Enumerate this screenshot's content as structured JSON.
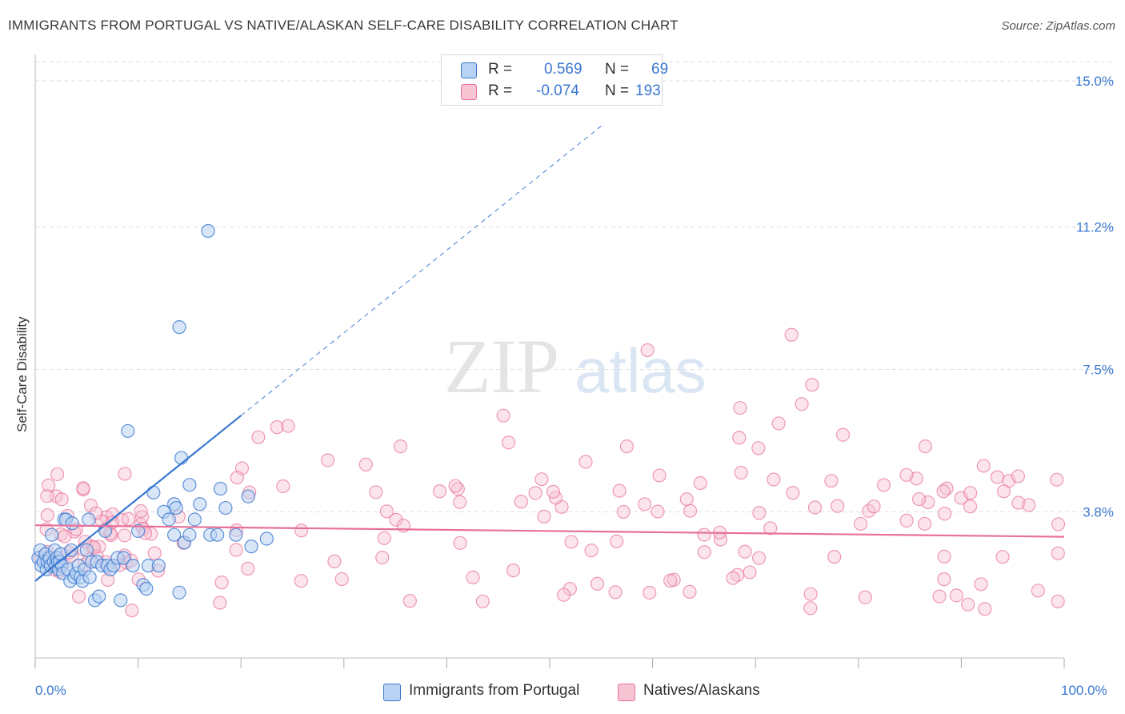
{
  "title": "IMMIGRANTS FROM PORTUGAL VS NATIVE/ALASKAN SELF-CARE DISABILITY CORRELATION CHART",
  "source": "Source: ZipAtlas.com",
  "watermark": {
    "zip": "ZIP",
    "atlas": "atlas"
  },
  "legend": {
    "r_label": "R =",
    "n_label": "N =",
    "rows": [
      {
        "r": "0.569",
        "n": "69"
      },
      {
        "r": "-0.074",
        "n": "193"
      }
    ]
  },
  "bottom_legend": [
    "Immigrants from Portugal",
    "Natives/Alaskans"
  ],
  "colors": {
    "blue": "#3a78d0",
    "blue_fill": "#b8d2f3",
    "pink": "#e8709a",
    "pink_fill": "#f7c4d3",
    "grid": "#dddddd"
  },
  "chart_data": {
    "type": "scatter",
    "title": "IMMIGRANTS FROM PORTUGAL VS NATIVE/ALASKAN SELF-CARE DISABILITY CORRELATION CHART",
    "xlabel": "",
    "ylabel": "Self-Care Disability",
    "xlim": [
      0,
      100
    ],
    "ylim": [
      0,
      15.5
    ],
    "x_tick_labels": [
      "0.0%",
      "100.0%"
    ],
    "y_ticks": [
      3.8,
      7.5,
      11.2,
      15.0
    ],
    "y_tick_labels": [
      "3.8%",
      "7.5%",
      "11.2%",
      "15.0%"
    ],
    "grid": true,
    "series": [
      {
        "name": "Immigrants from Portugal",
        "r": 0.569,
        "n": 69,
        "trend": {
          "x0": 0,
          "y0": 2.0,
          "x1": 20,
          "y1": 6.3,
          "dashed_to_x": 55
        },
        "points": [
          [
            0.3,
            2.6
          ],
          [
            0.5,
            2.8
          ],
          [
            0.6,
            2.4
          ],
          [
            0.8,
            2.5
          ],
          [
            1.0,
            2.7
          ],
          [
            1.1,
            2.3
          ],
          [
            1.2,
            2.5
          ],
          [
            1.4,
            2.6
          ],
          [
            1.5,
            2.4
          ],
          [
            1.6,
            3.2
          ],
          [
            1.8,
            2.5
          ],
          [
            1.9,
            2.8
          ],
          [
            2.0,
            2.4
          ],
          [
            2.1,
            2.6
          ],
          [
            2.2,
            2.5
          ],
          [
            2.3,
            2.3
          ],
          [
            2.4,
            2.5
          ],
          [
            2.5,
            2.7
          ],
          [
            2.6,
            2.4
          ],
          [
            2.7,
            2.2
          ],
          [
            2.8,
            3.6
          ],
          [
            3.0,
            3.6
          ],
          [
            3.2,
            2.3
          ],
          [
            3.4,
            2.0
          ],
          [
            3.5,
            2.8
          ],
          [
            3.6,
            3.5
          ],
          [
            3.8,
            2.1
          ],
          [
            4.0,
            2.2
          ],
          [
            4.2,
            2.4
          ],
          [
            4.4,
            2.1
          ],
          [
            4.6,
            2.0
          ],
          [
            4.8,
            2.3
          ],
          [
            5.0,
            2.8
          ],
          [
            5.2,
            3.6
          ],
          [
            5.3,
            2.1
          ],
          [
            5.5,
            2.5
          ],
          [
            5.8,
            1.5
          ],
          [
            6.0,
            2.5
          ],
          [
            6.2,
            1.6
          ],
          [
            6.5,
            2.4
          ],
          [
            6.8,
            3.3
          ],
          [
            7.0,
            2.4
          ],
          [
            7.3,
            2.3
          ],
          [
            7.6,
            2.4
          ],
          [
            8.0,
            2.6
          ],
          [
            8.3,
            1.5
          ],
          [
            8.6,
            2.6
          ],
          [
            9.0,
            5.9
          ],
          [
            9.5,
            2.4
          ],
          [
            10.0,
            3.3
          ],
          [
            10.5,
            1.9
          ],
          [
            10.8,
            1.8
          ],
          [
            11.0,
            2.4
          ],
          [
            11.5,
            4.3
          ],
          [
            12.0,
            2.4
          ],
          [
            12.5,
            3.8
          ],
          [
            13.0,
            3.6
          ],
          [
            13.5,
            3.2
          ],
          [
            14.0,
            1.7
          ],
          [
            14.5,
            3.0
          ],
          [
            15.0,
            3.2
          ],
          [
            15.5,
            3.6
          ],
          [
            16.0,
            4.0
          ],
          [
            17.0,
            3.2
          ],
          [
            18.0,
            4.4
          ],
          [
            18.5,
            3.9
          ],
          [
            19.5,
            3.2
          ],
          [
            21.0,
            2.9
          ],
          [
            22.5,
            3.1
          ]
        ],
        "outliers": [
          [
            16.8,
            11.1
          ],
          [
            14.0,
            8.6
          ],
          [
            14.2,
            5.2
          ],
          [
            13.5,
            4.0
          ],
          [
            13.7,
            3.9
          ],
          [
            17.7,
            3.2
          ],
          [
            20.7,
            4.2
          ],
          [
            15.0,
            4.5
          ]
        ]
      },
      {
        "name": "Natives/Alaskans",
        "r": -0.074,
        "n": 193,
        "trend": {
          "x0": 0,
          "y0": 3.45,
          "x1": 100,
          "y1": 3.15
        }
      }
    ]
  }
}
